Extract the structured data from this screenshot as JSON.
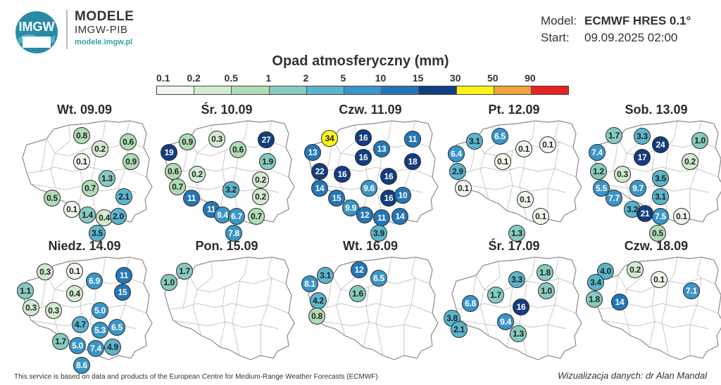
{
  "header": {
    "logo_text": "IMGW",
    "brand_title": "MODELE",
    "brand_sub": "IMGW-PIB",
    "brand_url": "modele.imgw.pl"
  },
  "meta": {
    "model_label": "Model:",
    "model_value": "ECMWF HRES 0.1°",
    "start_label": "Start:",
    "start_value": "09.09.2025 02:00"
  },
  "title": "Opad atmosferyczny (mm)",
  "legend": {
    "ticks": [
      "0.1",
      "0.2",
      "0.5",
      "1",
      "2",
      "5",
      "10",
      "15",
      "30",
      "50",
      "90"
    ],
    "colors": [
      "#f1f8ed",
      "#d3ecd1",
      "#b0dcb5",
      "#86cbbf",
      "#5ab5cd",
      "#3a95c8",
      "#2476b8",
      "#123d7f",
      "#fff31a",
      "#f0a23e",
      "#e42424"
    ]
  },
  "panels": [
    {
      "day": "Wt. 09.09",
      "points": [
        {
          "v": "0.8",
          "c": "#b0dcb5"
        },
        {
          "v": "0.6",
          "c": "#b0dcb5"
        },
        {
          "v": "0.2",
          "c": "#d3ecd1"
        },
        {
          "v": "0.9",
          "c": "#b0dcb5"
        },
        {
          "v": "0.1",
          "c": "#f1f8ed"
        },
        {
          "v": "1.3",
          "c": "#86cbbf"
        },
        {
          "v": "0.7",
          "c": "#b0dcb5"
        },
        {
          "v": "2.1",
          "c": "#5ab5cd"
        },
        {
          "v": "0.5",
          "c": "#b0dcb5"
        },
        {
          "v": "0.1",
          "c": "#f1f8ed"
        },
        {
          "v": "1.4",
          "c": "#86cbbf"
        },
        {
          "v": "0.4",
          "c": "#d3ecd1"
        },
        {
          "v": "2.0",
          "c": "#5ab5cd"
        },
        {
          "v": "3.5",
          "c": "#5ab5cd"
        }
      ]
    },
    {
      "day": "Śr. 10.09",
      "points": [
        {
          "v": "0.9",
          "c": "#b0dcb5"
        },
        {
          "v": "0.3",
          "c": "#d3ecd1"
        },
        {
          "v": "27",
          "c": "#123d7f"
        },
        {
          "v": "19",
          "c": "#123d7f"
        },
        {
          "v": "0.6",
          "c": "#b0dcb5"
        },
        {
          "v": "1.9",
          "c": "#86cbbf"
        },
        {
          "v": "0.6",
          "c": "#b0dcb5"
        },
        {
          "v": "0.2",
          "c": "#d3ecd1"
        },
        {
          "v": "3.2",
          "c": "#5ab5cd"
        },
        {
          "v": "0.2",
          "c": "#d3ecd1"
        },
        {
          "v": "0.7",
          "c": "#b0dcb5"
        },
        {
          "v": "0.2",
          "c": "#d3ecd1"
        },
        {
          "v": "11",
          "c": "#2476b8"
        },
        {
          "v": "11",
          "c": "#2476b8"
        },
        {
          "v": "9.4",
          "c": "#3a95c8"
        },
        {
          "v": "6.7",
          "c": "#3a95c8"
        },
        {
          "v": "0.7",
          "c": "#b0dcb5"
        },
        {
          "v": "7.8",
          "c": "#3a95c8"
        }
      ]
    },
    {
      "day": "Czw. 11.09",
      "points": [
        {
          "v": "34",
          "c": "#fff31a"
        },
        {
          "v": "16",
          "c": "#123d7f"
        },
        {
          "v": "11",
          "c": "#2476b8"
        },
        {
          "v": "13",
          "c": "#2476b8"
        },
        {
          "v": "13",
          "c": "#2476b8"
        },
        {
          "v": "18",
          "c": "#123d7f"
        },
        {
          "v": "16",
          "c": "#123d7f"
        },
        {
          "v": "22",
          "c": "#123d7f"
        },
        {
          "v": "16",
          "c": "#123d7f"
        },
        {
          "v": "16",
          "c": "#123d7f"
        },
        {
          "v": "14",
          "c": "#2476b8"
        },
        {
          "v": "9.6",
          "c": "#3a95c8"
        },
        {
          "v": "15",
          "c": "#2476b8"
        },
        {
          "v": "16",
          "c": "#123d7f"
        },
        {
          "v": "10",
          "c": "#2476b8"
        },
        {
          "v": "9.9",
          "c": "#3a95c8"
        },
        {
          "v": "12",
          "c": "#2476b8"
        },
        {
          "v": "11",
          "c": "#2476b8"
        },
        {
          "v": "14",
          "c": "#2476b8"
        },
        {
          "v": "3.9",
          "c": "#5ab5cd"
        }
      ]
    },
    {
      "day": "Pt. 12.09",
      "points": [
        {
          "v": "6.5",
          "c": "#3a95c8"
        },
        {
          "v": "3.1",
          "c": "#5ab5cd"
        },
        {
          "v": "0.1",
          "c": "#f1f8ed"
        },
        {
          "v": "0.1",
          "c": "#f1f8ed"
        },
        {
          "v": "6.4",
          "c": "#3a95c8"
        },
        {
          "v": "0.1",
          "c": "#f1f8ed"
        },
        {
          "v": "2.9",
          "c": "#5ab5cd"
        },
        {
          "v": "0.1",
          "c": "#f1f8ed"
        },
        {
          "v": "0.1",
          "c": "#f1f8ed"
        },
        {
          "v": "0.1",
          "c": "#f1f8ed"
        },
        {
          "v": "1.3",
          "c": "#86cbbf"
        }
      ]
    },
    {
      "day": "Sob. 13.09",
      "points": [
        {
          "v": "1.7",
          "c": "#86cbbf"
        },
        {
          "v": "3.3",
          "c": "#5ab5cd"
        },
        {
          "v": "1.0",
          "c": "#86cbbf"
        },
        {
          "v": "24",
          "c": "#123d7f"
        },
        {
          "v": "7.4",
          "c": "#3a95c8"
        },
        {
          "v": "0.2",
          "c": "#d3ecd1"
        },
        {
          "v": "17",
          "c": "#123d7f"
        },
        {
          "v": "1.2",
          "c": "#86cbbf"
        },
        {
          "v": "0.3",
          "c": "#d3ecd1"
        },
        {
          "v": "3.5",
          "c": "#5ab5cd"
        },
        {
          "v": "5.5",
          "c": "#3a95c8"
        },
        {
          "v": "9.7",
          "c": "#3a95c8"
        },
        {
          "v": "7.7",
          "c": "#3a95c8"
        },
        {
          "v": "3.1",
          "c": "#5ab5cd"
        },
        {
          "v": "3.2",
          "c": "#5ab5cd"
        },
        {
          "v": "21",
          "c": "#123d7f"
        },
        {
          "v": "7.5",
          "c": "#3a95c8"
        },
        {
          "v": "0.1",
          "c": "#f1f8ed"
        },
        {
          "v": "0.5",
          "c": "#b0dcb5"
        }
      ]
    },
    {
      "day": "Niedz. 14.09",
      "points": [
        {
          "v": "0.3",
          "c": "#d3ecd1"
        },
        {
          "v": "0.1",
          "c": "#f1f8ed"
        },
        {
          "v": "6.9",
          "c": "#3a95c8"
        },
        {
          "v": "11",
          "c": "#2476b8"
        },
        {
          "v": "1.1",
          "c": "#86cbbf"
        },
        {
          "v": "15",
          "c": "#2476b8"
        },
        {
          "v": "0.4",
          "c": "#d3ecd1"
        },
        {
          "v": "0.3",
          "c": "#d3ecd1"
        },
        {
          "v": "0.3",
          "c": "#d3ecd1"
        },
        {
          "v": "5.0",
          "c": "#3a95c8"
        },
        {
          "v": "4.7",
          "c": "#5ab5cd"
        },
        {
          "v": "5.3",
          "c": "#3a95c8"
        },
        {
          "v": "6.5",
          "c": "#3a95c8"
        },
        {
          "v": "1.7",
          "c": "#86cbbf"
        },
        {
          "v": "5.0",
          "c": "#3a95c8"
        },
        {
          "v": "7.4",
          "c": "#3a95c8"
        },
        {
          "v": "4.9",
          "c": "#5ab5cd"
        },
        {
          "v": "8.6",
          "c": "#3a95c8"
        }
      ]
    },
    {
      "day": "Pon. 15.09",
      "points": [
        {
          "v": "1.7",
          "c": "#86cbbf"
        },
        {
          "v": "1.0",
          "c": "#86cbbf"
        }
      ]
    },
    {
      "day": "Wt. 16.09",
      "points": [
        {
          "v": "12",
          "c": "#2476b8"
        },
        {
          "v": "3.1",
          "c": "#5ab5cd"
        },
        {
          "v": "6.5",
          "c": "#3a95c8"
        },
        {
          "v": "8.1",
          "c": "#3a95c8"
        },
        {
          "v": "1.6",
          "c": "#86cbbf"
        },
        {
          "v": "4.2",
          "c": "#5ab5cd"
        },
        {
          "v": "0.8",
          "c": "#b0dcb5"
        }
      ]
    },
    {
      "day": "Śr. 17.09",
      "points": [
        {
          "v": "1.8",
          "c": "#86cbbf"
        },
        {
          "v": "3.3",
          "c": "#5ab5cd"
        },
        {
          "v": "1.0",
          "c": "#86cbbf"
        },
        {
          "v": "1.7",
          "c": "#86cbbf"
        },
        {
          "v": "6.8",
          "c": "#3a95c8"
        },
        {
          "v": "16",
          "c": "#123d7f"
        },
        {
          "v": "3.8",
          "c": "#5ab5cd"
        },
        {
          "v": "9.4",
          "c": "#3a95c8"
        },
        {
          "v": "2.1",
          "c": "#5ab5cd"
        },
        {
          "v": "1.3",
          "c": "#86cbbf"
        }
      ]
    },
    {
      "day": "Czw. 18.09",
      "points": [
        {
          "v": "4.0",
          "c": "#5ab5cd"
        },
        {
          "v": "0.2",
          "c": "#d3ecd1"
        },
        {
          "v": "3.4",
          "c": "#5ab5cd"
        },
        {
          "v": "0.1",
          "c": "#f1f8ed"
        },
        {
          "v": "7.1",
          "c": "#3a95c8"
        },
        {
          "v": "1.8",
          "c": "#86cbbf"
        },
        {
          "v": "14",
          "c": "#2476b8"
        }
      ]
    }
  ],
  "footer": "This service is based on data and products of the European Centre for Medium-Range Weather Forecasts (ECMWF)",
  "credit": "Wizualizacja danych: dr Alan Mandal"
}
